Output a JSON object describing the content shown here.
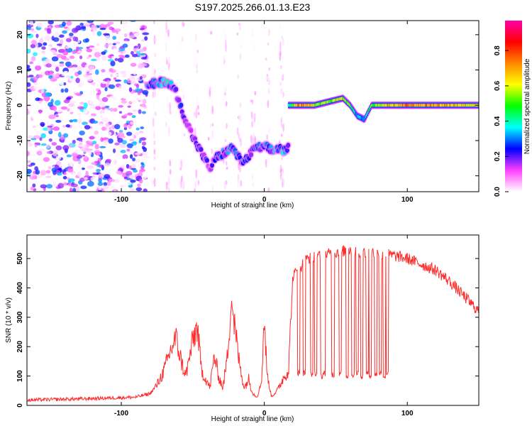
{
  "title": "S197.2025.266.01.13.E23",
  "colors": {
    "snr_line": "#ff2a2a",
    "axes": "#000000",
    "background": "#ffffff"
  },
  "chart_data": [
    {
      "type": "heatmap",
      "name": "spectrogram",
      "xlabel": "Height of straight line (km)",
      "ylabel": "Frequency (Hz)",
      "xlim": [
        -166,
        150
      ],
      "ylim": [
        -24.5,
        24
      ],
      "xticks": [
        -100,
        0,
        100
      ],
      "yticks": [
        -20,
        -10,
        0,
        10,
        20
      ],
      "grid": false,
      "colorbar": {
        "label": "Normalized spectral amplitude",
        "range": [
          0,
          0.97
        ],
        "ticks": [
          0.0,
          0.2,
          0.4,
          0.6,
          0.8
        ],
        "stops": [
          "#ffffff",
          "#ff40ff",
          "#0000ff",
          "#00ffff",
          "#00ff00",
          "#ffff00",
          "#ff8800",
          "#ff0000",
          "#ff00aa"
        ]
      },
      "noise_region": {
        "x_range": [
          -166,
          -82
        ],
        "freq_range": [
          -24.5,
          24
        ],
        "typical_amplitude": 0.2
      },
      "sparse_noise_region": {
        "x_range": [
          -82,
          17
        ],
        "typical_amplitude": 0.08
      },
      "ridge": {
        "x": [
          -82,
          -78,
          -74,
          -70,
          -66,
          -62,
          -58,
          -54,
          -50,
          -46,
          -42,
          -38,
          -34,
          -30,
          -26,
          -22,
          -18,
          -14,
          -10,
          -6,
          -2,
          2,
          6,
          10,
          14,
          17
        ],
        "freq": [
          5,
          6,
          6,
          7,
          6,
          4,
          -1,
          -5,
          -9,
          -12,
          -15,
          -18,
          -15,
          -14,
          -13,
          -12,
          -15,
          -16,
          -14,
          -12,
          -12,
          -12,
          -13,
          -12,
          -13,
          -12
        ],
        "amplitude": [
          0.25,
          0.3,
          0.3,
          0.35,
          0.3,
          0.2,
          0.25,
          0.2,
          0.2,
          0.2,
          0.2,
          0.15,
          0.2,
          0.25,
          0.25,
          0.3,
          0.25,
          0.25,
          0.2,
          0.25,
          0.25,
          0.25,
          0.3,
          0.3,
          0.3,
          0.25
        ]
      },
      "tone": {
        "x": [
          17,
          25,
          35,
          45,
          55,
          60,
          65,
          70,
          75,
          85,
          100,
          120,
          140,
          150
        ],
        "freq": [
          0,
          0,
          0,
          1,
          2,
          0,
          -3,
          -4,
          0,
          0,
          0,
          0,
          0,
          0
        ],
        "amplitude": [
          0.35,
          0.75,
          0.6,
          0.55,
          0.6,
          0.5,
          0.3,
          0.35,
          0.5,
          0.65,
          0.7,
          0.7,
          0.65,
          0.6
        ]
      }
    },
    {
      "type": "line",
      "name": "snr",
      "xlabel": "Height of straight line (km)",
      "ylabel": "SNR (10 * v/v)",
      "xlim": [
        -166,
        150
      ],
      "ylim": [
        0,
        580
      ],
      "xticks": [
        -100,
        0,
        100
      ],
      "yticks": [
        0,
        100,
        200,
        300,
        400,
        500
      ],
      "grid": false,
      "series": [
        {
          "name": "SNR",
          "color": "#ff2a2a",
          "x": [
            -166,
            -150,
            -130,
            -110,
            -90,
            -80,
            -75,
            -70,
            -66,
            -62,
            -58,
            -55,
            -52,
            -50,
            -47,
            -44,
            -41,
            -38,
            -35,
            -32,
            -29,
            -26,
            -23,
            -20,
            -17,
            -14,
            -11,
            -8,
            -5,
            -2,
            0,
            2,
            5,
            8,
            11,
            14,
            17,
            20,
            25,
            30,
            40,
            50,
            60,
            70,
            80,
            90,
            100,
            110,
            120,
            130,
            140,
            150
          ],
          "values": [
            18,
            20,
            22,
            25,
            28,
            40,
            70,
            120,
            180,
            230,
            150,
            100,
            170,
            220,
            270,
            120,
            90,
            60,
            170,
            100,
            60,
            160,
            360,
            240,
            130,
            60,
            90,
            40,
            30,
            80,
            300,
            100,
            30,
            45,
            70,
            100,
            120,
            440,
            470,
            500,
            510,
            520,
            530,
            520,
            520,
            510,
            500,
            480,
            460,
            420,
            370,
            320
          ]
        }
      ],
      "dropouts": {
        "x": [
          24,
          28,
          33,
          36,
          40,
          42,
          48,
          53,
          58,
          62,
          65,
          68,
          72,
          74,
          78,
          81,
          84,
          86
        ],
        "values": [
          110,
          110,
          105,
          110,
          100,
          110,
          105,
          110,
          100,
          105,
          110,
          100,
          110,
          100,
          105,
          110,
          100,
          110
        ]
      }
    }
  ]
}
